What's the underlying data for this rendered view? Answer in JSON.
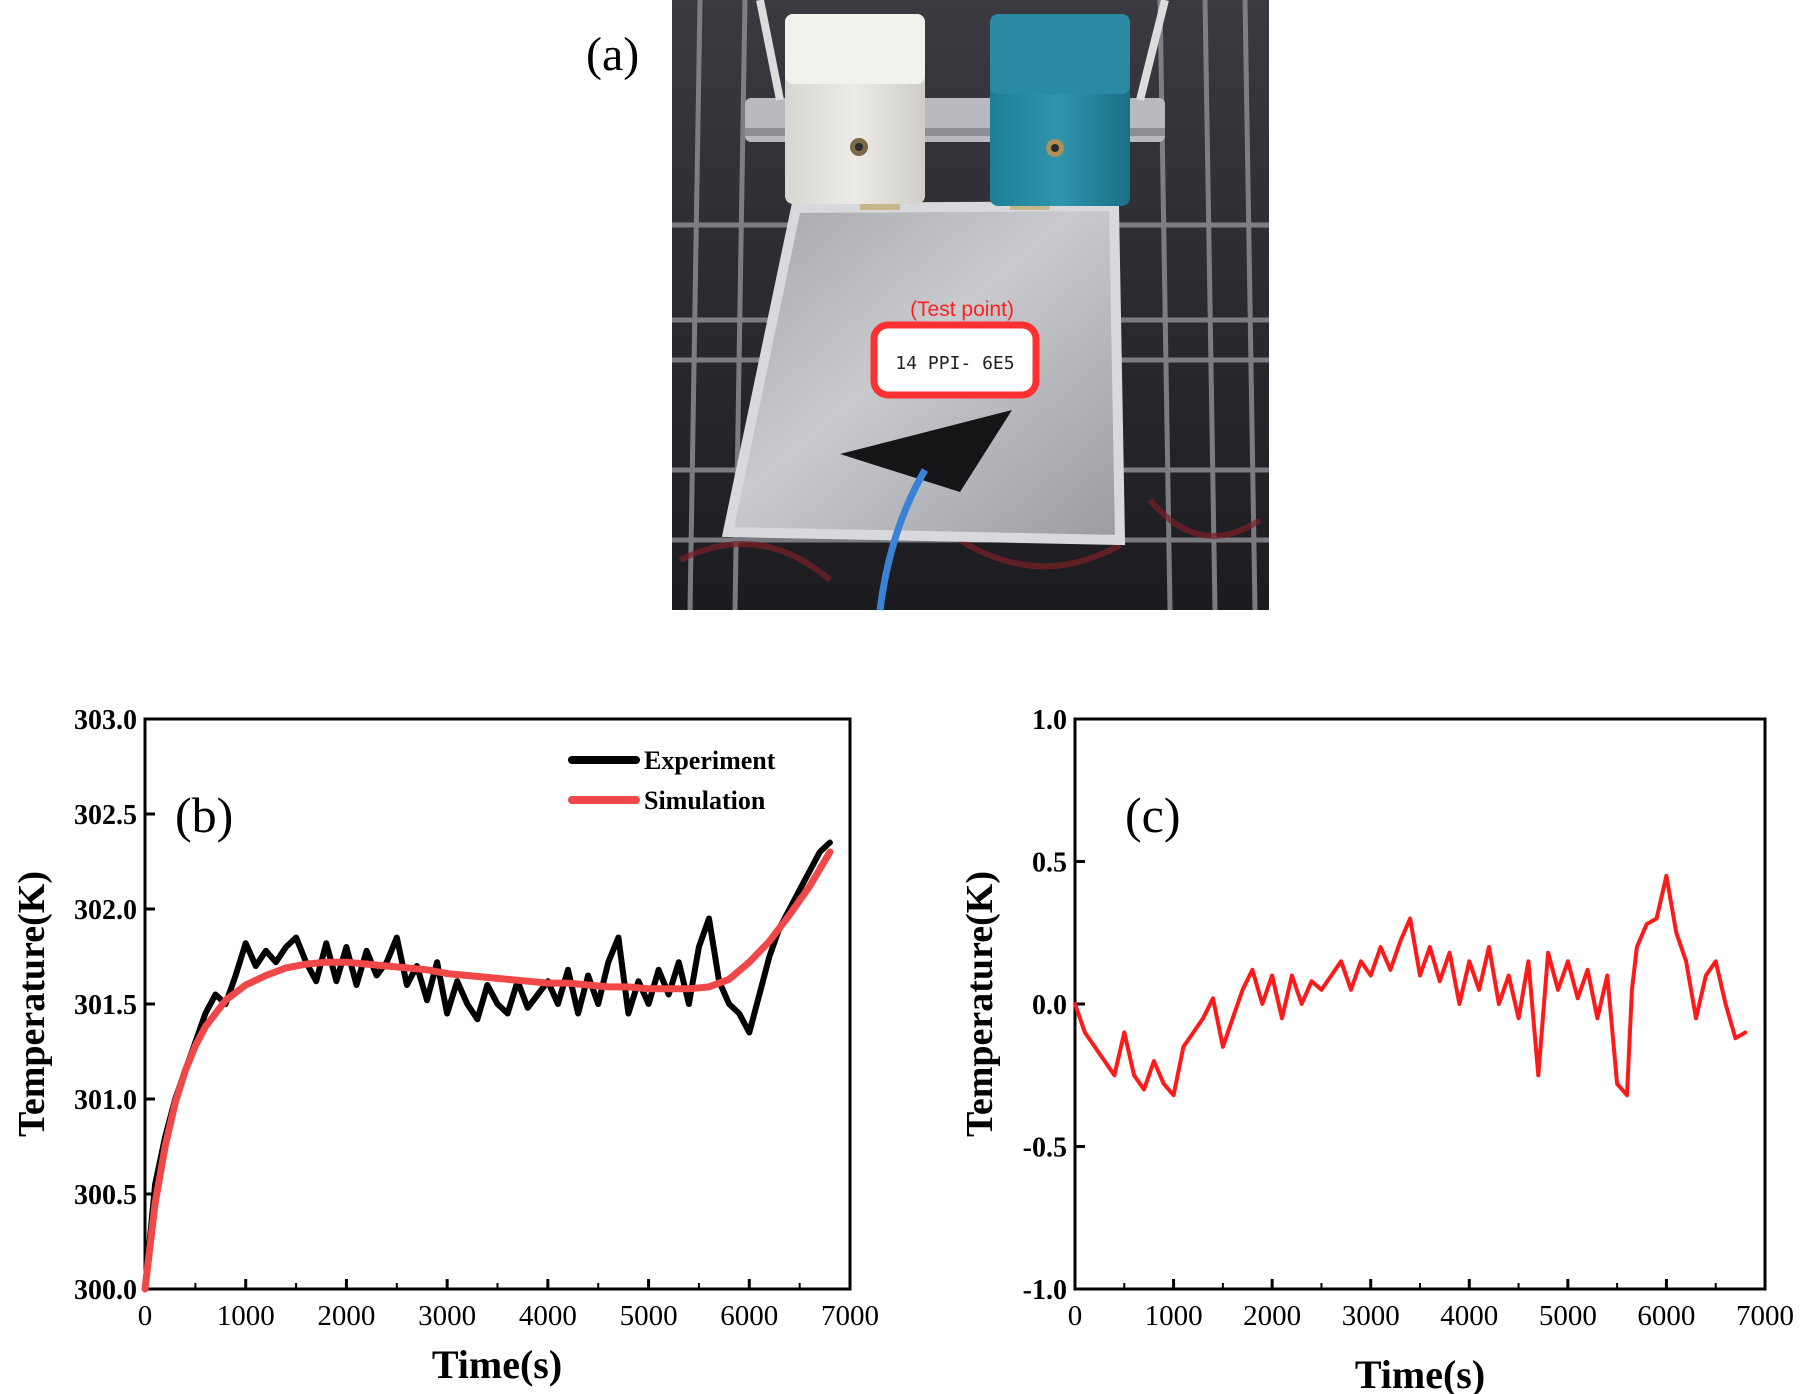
{
  "panel_labels": {
    "a": "(a)",
    "b": "(b)",
    "c": "(c)"
  },
  "photo": {
    "annotation": "(Test point)",
    "sticker_text": "14 PPI- 6E5"
  },
  "colors": {
    "experiment": "#000000",
    "simulation": "#f04848",
    "difference": "#ff1a1a",
    "annotation": "#ff2020"
  },
  "chart_data": [
    {
      "id": "b",
      "type": "line",
      "xlabel": "Time(s)",
      "ylabel": "Temperature(K)",
      "xlim": [
        0,
        7000
      ],
      "ylim": [
        300.0,
        303.0
      ],
      "xticks": [
        0,
        1000,
        2000,
        3000,
        4000,
        5000,
        6000,
        7000
      ],
      "yticks": [
        300.0,
        300.5,
        301.0,
        301.5,
        302.0,
        302.5,
        303.0
      ],
      "legend_position": "top-right",
      "series": [
        {
          "name": "Experiment",
          "x": [
            0,
            100,
            200,
            300,
            400,
            500,
            600,
            700,
            800,
            900,
            1000,
            1100,
            1200,
            1300,
            1400,
            1500,
            1600,
            1700,
            1800,
            1900,
            2000,
            2100,
            2200,
            2300,
            2400,
            2500,
            2600,
            2700,
            2800,
            2900,
            3000,
            3100,
            3200,
            3300,
            3400,
            3500,
            3600,
            3700,
            3800,
            3900,
            4000,
            4100,
            4200,
            4300,
            4400,
            4500,
            4600,
            4700,
            4800,
            4900,
            5000,
            5100,
            5200,
            5300,
            5400,
            5500,
            5600,
            5700,
            5800,
            5900,
            6000,
            6100,
            6200,
            6300,
            6400,
            6500,
            6600,
            6700,
            6800
          ],
          "y": [
            300.0,
            300.55,
            300.8,
            301.0,
            301.15,
            301.3,
            301.45,
            301.55,
            301.5,
            301.65,
            301.82,
            301.7,
            301.78,
            301.72,
            301.8,
            301.85,
            301.72,
            301.62,
            301.82,
            301.62,
            301.8,
            301.6,
            301.78,
            301.65,
            301.72,
            301.85,
            301.6,
            301.7,
            301.52,
            301.72,
            301.45,
            301.62,
            301.5,
            301.42,
            301.6,
            301.5,
            301.45,
            301.62,
            301.48,
            301.55,
            301.62,
            301.5,
            301.68,
            301.45,
            301.65,
            301.5,
            301.72,
            301.85,
            301.45,
            301.62,
            301.5,
            301.68,
            301.55,
            301.72,
            301.5,
            301.8,
            301.95,
            301.62,
            301.5,
            301.45,
            301.35,
            301.55,
            301.75,
            301.9,
            302.0,
            302.1,
            302.2,
            302.3,
            302.35
          ]
        },
        {
          "name": "Simulation",
          "x": [
            0,
            100,
            200,
            300,
            400,
            500,
            600,
            800,
            1000,
            1200,
            1400,
            1600,
            1800,
            2000,
            2200,
            2400,
            2600,
            2800,
            3000,
            3200,
            3400,
            3600,
            3800,
            4000,
            4200,
            4400,
            4600,
            4800,
            5000,
            5200,
            5400,
            5600,
            5800,
            6000,
            6200,
            6400,
            6600,
            6800
          ],
          "y": [
            300.0,
            300.45,
            300.75,
            300.98,
            301.15,
            301.28,
            301.38,
            301.52,
            301.6,
            301.65,
            301.69,
            301.71,
            301.72,
            301.72,
            301.71,
            301.7,
            301.69,
            301.68,
            301.66,
            301.65,
            301.64,
            301.63,
            301.62,
            301.61,
            301.61,
            301.6,
            301.59,
            301.59,
            301.58,
            301.58,
            301.58,
            301.59,
            301.63,
            301.72,
            301.83,
            301.97,
            302.12,
            302.3
          ]
        }
      ]
    },
    {
      "id": "c",
      "type": "line",
      "xlabel": "Time(s)",
      "ylabel": "Temperature(K)",
      "xlim": [
        0,
        7000
      ],
      "ylim": [
        -1.0,
        1.0
      ],
      "xticks": [
        0,
        1000,
        2000,
        3000,
        4000,
        5000,
        6000,
        7000
      ],
      "yticks": [
        -1.0,
        -0.5,
        0.0,
        0.5,
        1.0
      ],
      "series": [
        {
          "x": [
            0,
            100,
            200,
            300,
            400,
            500,
            600,
            700,
            800,
            900,
            1000,
            1100,
            1200,
            1300,
            1400,
            1500,
            1600,
            1700,
            1800,
            1900,
            2000,
            2100,
            2200,
            2300,
            2400,
            2500,
            2600,
            2700,
            2800,
            2900,
            3000,
            3100,
            3200,
            3300,
            3400,
            3500,
            3600,
            3700,
            3800,
            3900,
            4000,
            4100,
            4200,
            4300,
            4400,
            4500,
            4600,
            4700,
            4800,
            4900,
            5000,
            5100,
            5200,
            5300,
            5400,
            5500,
            5600,
            5650,
            5700,
            5800,
            5900,
            6000,
            6100,
            6200,
            6300,
            6400,
            6500,
            6600,
            6700,
            6800
          ],
          "y": [
            0.0,
            -0.1,
            -0.15,
            -0.2,
            -0.25,
            -0.1,
            -0.25,
            -0.3,
            -0.2,
            -0.28,
            -0.32,
            -0.15,
            -0.1,
            -0.05,
            0.02,
            -0.15,
            -0.05,
            0.05,
            0.12,
            0.0,
            0.1,
            -0.05,
            0.1,
            0.0,
            0.08,
            0.05,
            0.1,
            0.15,
            0.05,
            0.15,
            0.1,
            0.2,
            0.12,
            0.22,
            0.3,
            0.1,
            0.2,
            0.08,
            0.18,
            0.0,
            0.15,
            0.05,
            0.2,
            0.0,
            0.1,
            -0.05,
            0.15,
            -0.25,
            0.18,
            0.05,
            0.15,
            0.02,
            0.12,
            -0.05,
            0.1,
            -0.28,
            -0.32,
            0.05,
            0.2,
            0.28,
            0.3,
            0.45,
            0.25,
            0.15,
            -0.05,
            0.1,
            0.15,
            0.0,
            -0.12,
            -0.1
          ]
        }
      ]
    }
  ]
}
